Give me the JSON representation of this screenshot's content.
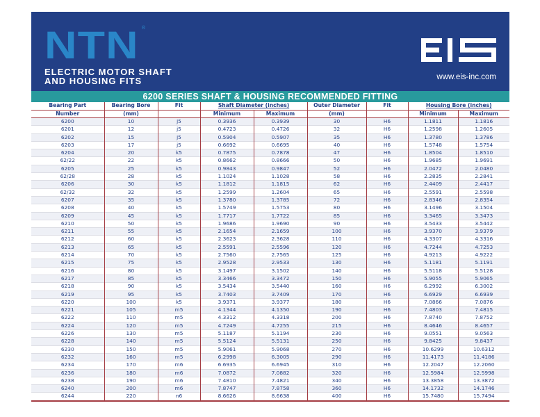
{
  "header": {
    "brand": "NTN",
    "reg_mark": "®",
    "title_line1": "ELECTRIC MOTOR SHAFT",
    "title_line2": "AND HOUSING FITS",
    "eis_logo_text": "EIS",
    "website": "www.eis-inc.com",
    "colors": {
      "navy": "#223f86",
      "ntn_blue": "#2a86c8",
      "teal": "#289a9d",
      "rule": "#a43c43"
    }
  },
  "table": {
    "title": "6200 SERIES SHAFT & HOUSING RECOMMENDED FITTING",
    "headers": {
      "bearing_part": "Bearing Part",
      "number": "Number",
      "bearing_bore": "Bearing Bore",
      "mm": "(mm)",
      "fit": "Fit",
      "shaft_diameter": "Shaft Diameter (inches)",
      "minimum": "Minimum",
      "maximum": "Maximum",
      "outer_diameter": "Outer Diameter",
      "housing_bore": "Housing Bore (inches)"
    },
    "rows": [
      [
        "6200",
        "10",
        "j5",
        "0.3936",
        "0.3939",
        "30",
        "H6",
        "1.1811",
        "1.1816"
      ],
      [
        "6201",
        "12",
        "j5",
        "0.4723",
        "0.4726",
        "32",
        "H6",
        "1.2598",
        "1.2605"
      ],
      [
        "6202",
        "15",
        "j5",
        "0.5904",
        "0.5907",
        "35",
        "H6",
        "1.3780",
        "1.3786"
      ],
      [
        "6203",
        "17",
        "j5",
        "0.6692",
        "0.6695",
        "40",
        "H6",
        "1.5748",
        "1.5754"
      ],
      [
        "6204",
        "20",
        "k5",
        "0.7875",
        "0.7878",
        "47",
        "H6",
        "1.8504",
        "1.8510"
      ],
      [
        "62/22",
        "22",
        "k5",
        "0.8662",
        "0.8666",
        "50",
        "H6",
        "1.9685",
        "1.9691"
      ],
      [
        "6205",
        "25",
        "k5",
        "0.9843",
        "0.9847",
        "52",
        "H6",
        "2.0472",
        "2.0480"
      ],
      [
        "62/28",
        "28",
        "k5",
        "1.1024",
        "1.1028",
        "58",
        "H6",
        "2.2835",
        "2.2841"
      ],
      [
        "6206",
        "30",
        "k5",
        "1.1812",
        "1.1815",
        "62",
        "H6",
        "2.4409",
        "2.4417"
      ],
      [
        "62/32",
        "32",
        "k5",
        "1.2599",
        "1.2604",
        "65",
        "H6",
        "2.5591",
        "2.5598"
      ],
      [
        "6207",
        "35",
        "k5",
        "1.3780",
        "1.3785",
        "72",
        "H6",
        "2.8346",
        "2.8354"
      ],
      [
        "6208",
        "40",
        "k5",
        "1.5749",
        "1.5753",
        "80",
        "H6",
        "3.1496",
        "3.1504"
      ],
      [
        "6209",
        "45",
        "k5",
        "1.7717",
        "1.7722",
        "85",
        "H6",
        "3.3465",
        "3.3473"
      ],
      [
        "6210",
        "50",
        "k5",
        "1.9686",
        "1.9690",
        "90",
        "H6",
        "3.5433",
        "3.5442"
      ],
      [
        "6211",
        "55",
        "k5",
        "2.1654",
        "2.1659",
        "100",
        "H6",
        "3.9370",
        "3.9379"
      ],
      [
        "6212",
        "60",
        "k5",
        "2.3623",
        "2.3628",
        "110",
        "H6",
        "4.3307",
        "4.3316"
      ],
      [
        "6213",
        "65",
        "k5",
        "2.5591",
        "2.5596",
        "120",
        "H6",
        "4.7244",
        "4.7253"
      ],
      [
        "6214",
        "70",
        "k5",
        "2.7560",
        "2.7565",
        "125",
        "H6",
        "4.9213",
        "4.9222"
      ],
      [
        "6215",
        "75",
        "k5",
        "2.9528",
        "2.9533",
        "130",
        "H6",
        "5.1181",
        "5.1191"
      ],
      [
        "6216",
        "80",
        "k5",
        "3.1497",
        "3.1502",
        "140",
        "H6",
        "5.5118",
        "5.5128"
      ],
      [
        "6217",
        "85",
        "k5",
        "3.3466",
        "3.3472",
        "150",
        "H6",
        "5.9055",
        "5.9065"
      ],
      [
        "6218",
        "90",
        "k5",
        "3.5434",
        "3.5440",
        "160",
        "H6",
        "6.2992",
        "6.3002"
      ],
      [
        "6219",
        "95",
        "k5",
        "3.7403",
        "3.7409",
        "170",
        "H6",
        "6.6929",
        "6.6939"
      ],
      [
        "6220",
        "100",
        "k5",
        "3.9371",
        "3.9377",
        "180",
        "H6",
        "7.0866",
        "7.0876"
      ],
      [
        "6221",
        "105",
        "m5",
        "4.1344",
        "4.1350",
        "190",
        "H6",
        "7.4803",
        "7.4815"
      ],
      [
        "6222",
        "110",
        "m5",
        "4.3312",
        "4.3318",
        "200",
        "H6",
        "7.8740",
        "7.8752"
      ],
      [
        "6224",
        "120",
        "m5",
        "4.7249",
        "4.7255",
        "215",
        "H6",
        "8.4646",
        "8.4657"
      ],
      [
        "6226",
        "130",
        "m5",
        "5.1187",
        "5.1194",
        "230",
        "H6",
        "9.0551",
        "9.0563"
      ],
      [
        "6228",
        "140",
        "m5",
        "5.5124",
        "5.5131",
        "250",
        "H6",
        "9.8425",
        "9.8437"
      ],
      [
        "6230",
        "150",
        "m5",
        "5.9061",
        "5.9068",
        "270",
        "H6",
        "10.6299",
        "10.6312"
      ],
      [
        "6232",
        "160",
        "m5",
        "6.2998",
        "6.3005",
        "290",
        "H6",
        "11.4173",
        "11.4186"
      ],
      [
        "6234",
        "170",
        "m6",
        "6.6935",
        "6.6945",
        "310",
        "H6",
        "12.2047",
        "12.2060"
      ],
      [
        "6236",
        "180",
        "m6",
        "7.0872",
        "7.0882",
        "320",
        "H6",
        "12.5984",
        "12.5998"
      ],
      [
        "6238",
        "190",
        "m6",
        "7.4810",
        "7.4821",
        "340",
        "H6",
        "13.3858",
        "13.3872"
      ],
      [
        "6240",
        "200",
        "m6",
        "7.8747",
        "7.8758",
        "360",
        "H6",
        "14.1732",
        "14.1746"
      ],
      [
        "6244",
        "220",
        "n6",
        "8.6626",
        "8.6638",
        "400",
        "H6",
        "15.7480",
        "15.7494"
      ]
    ]
  }
}
